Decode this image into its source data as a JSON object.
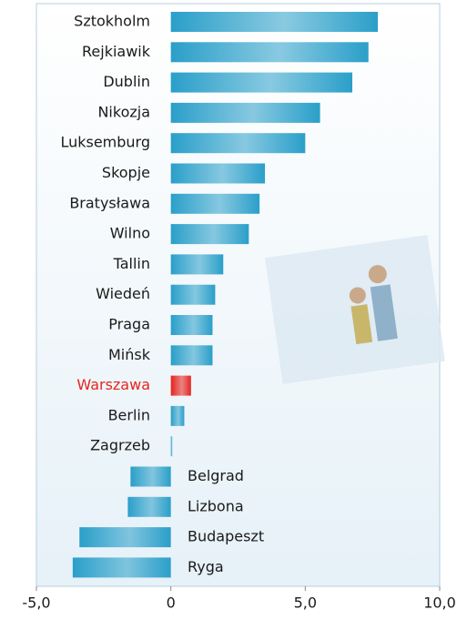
{
  "chart_data": {
    "type": "hbar",
    "categories": [
      "Sztokholm",
      "Rejkiawik",
      "Dublin",
      "Nikozja",
      "Luksemburg",
      "Skopje",
      "Bratysława",
      "Wilno",
      "Tallin",
      "Wiedeń",
      "Praga",
      "Mińsk",
      "Warszawa",
      "Berlin",
      "Zagrzeb",
      "Belgrad",
      "Lizbona",
      "Budapeszt",
      "Ryga"
    ],
    "values": [
      7.7,
      7.35,
      6.75,
      5.55,
      5.0,
      3.5,
      3.3,
      2.9,
      1.95,
      1.65,
      1.55,
      1.55,
      0.75,
      0.5,
      0.05,
      -1.5,
      -1.6,
      -3.4,
      -3.65
    ],
    "colors": [
      "#2a9fc9",
      "#2a9fc9",
      "#2a9fc9",
      "#2a9fc9",
      "#2a9fc9",
      "#2a9fc9",
      "#2a9fc9",
      "#2a9fc9",
      "#2a9fc9",
      "#2a9fc9",
      "#2a9fc9",
      "#2a9fc9",
      "#e52520",
      "#2a9fc9",
      "#2a9fc9",
      "#2a9fc9",
      "#2a9fc9",
      "#2a9fc9",
      "#2a9fc9"
    ],
    "label_colors": [
      "#1a1a1a",
      "#1a1a1a",
      "#1a1a1a",
      "#1a1a1a",
      "#1a1a1a",
      "#1a1a1a",
      "#1a1a1a",
      "#1a1a1a",
      "#1a1a1a",
      "#1a1a1a",
      "#1a1a1a",
      "#1a1a1a",
      "#e52520",
      "#1a1a1a",
      "#1a1a1a",
      "#1a1a1a",
      "#1a1a1a",
      "#1a1a1a",
      "#1a1a1a"
    ],
    "xlim": [
      -5,
      10
    ],
    "xticks": [
      {
        "value": -5,
        "label": "-5,0"
      },
      0,
      {
        "value": 5,
        "label": "5,0"
      },
      {
        "value": 10,
        "label": "10,0"
      }
    ]
  }
}
